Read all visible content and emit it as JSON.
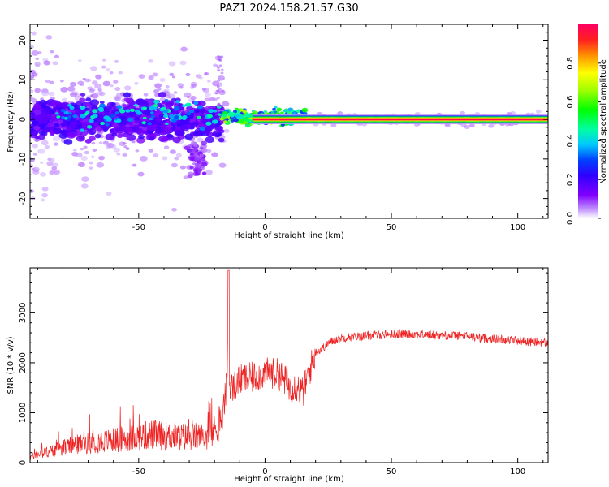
{
  "figure_title": "PAZ1.2024.158.21.57.G30",
  "chart_data": [
    {
      "type": "heatmap",
      "title": "PAZ1.2024.158.21.57.G30",
      "xlabel": "Height of straight line (km)",
      "ylabel": "Frequency (Hz)",
      "xlim": [
        -93,
        112
      ],
      "ylim": [
        -25,
        24
      ],
      "xticks": [
        -50,
        0,
        50,
        100
      ],
      "yticks": [
        -20,
        -10,
        0,
        10,
        20
      ],
      "grid": false,
      "colorbar": {
        "label": "Normalized spectral amplitude",
        "range": [
          0,
          1
        ],
        "ticks": [
          0.0,
          0.2,
          0.4,
          0.6,
          0.8
        ],
        "colors": [
          "#ffffff",
          "#c9a2ff",
          "#8000ff",
          "#3000ff",
          "#0040ff",
          "#00c8ff",
          "#00ffa0",
          "#00ff00",
          "#a0ff00",
          "#ffff00",
          "#ff9000",
          "#ff2020",
          "#ff0060"
        ]
      },
      "description_regions": [
        {
          "x_range": [
            -93,
            -18
          ],
          "freq_center": 0,
          "freq_spread": 5,
          "amplitude": "low-mid (purple/blue, scattered)"
        },
        {
          "x_range": [
            -16,
            16
          ],
          "freq_center": 0,
          "freq_spread": 2,
          "amplitude": "mid (blue/green/yellow clusters)"
        },
        {
          "x_range": [
            16,
            112
          ],
          "freq_center": 0,
          "freq_spread": 0.6,
          "amplitude": "high (tone at 0 Hz)"
        }
      ]
    },
    {
      "type": "line",
      "xlabel": "Height of straight line (km)",
      "ylabel": "SNR (10 * v/v)",
      "xlim": [
        -93,
        112
      ],
      "ylim": [
        0,
        3900
      ],
      "xticks": [
        -50,
        0,
        50,
        100
      ],
      "yticks": [
        0,
        1000,
        2000,
        3000
      ],
      "grid": false,
      "color": "#ee2222",
      "series": [
        {
          "x": [
            -93,
            -85,
            -75,
            -65,
            -55,
            -45,
            -35,
            -25,
            -20,
            -17,
            -16,
            -15,
            -14.5,
            -14,
            -13,
            -12,
            -10,
            -5,
            0,
            5,
            8,
            10,
            12,
            15,
            18,
            20,
            23,
            25,
            30,
            35,
            40,
            45,
            50,
            55,
            60,
            65,
            70,
            75,
            80,
            85,
            90,
            95,
            100,
            105,
            112
          ],
          "values": [
            120,
            230,
            360,
            420,
            480,
            560,
            520,
            520,
            620,
            900,
            1200,
            1700,
            3850,
            1500,
            1500,
            1550,
            1650,
            1700,
            1800,
            1780,
            1650,
            1500,
            1550,
            1400,
            1900,
            2200,
            2300,
            2400,
            2500,
            2520,
            2540,
            2560,
            2570,
            2580,
            2570,
            2560,
            2550,
            2540,
            2530,
            2500,
            2480,
            2460,
            2450,
            2420,
            2400
          ]
        }
      ]
    }
  ]
}
